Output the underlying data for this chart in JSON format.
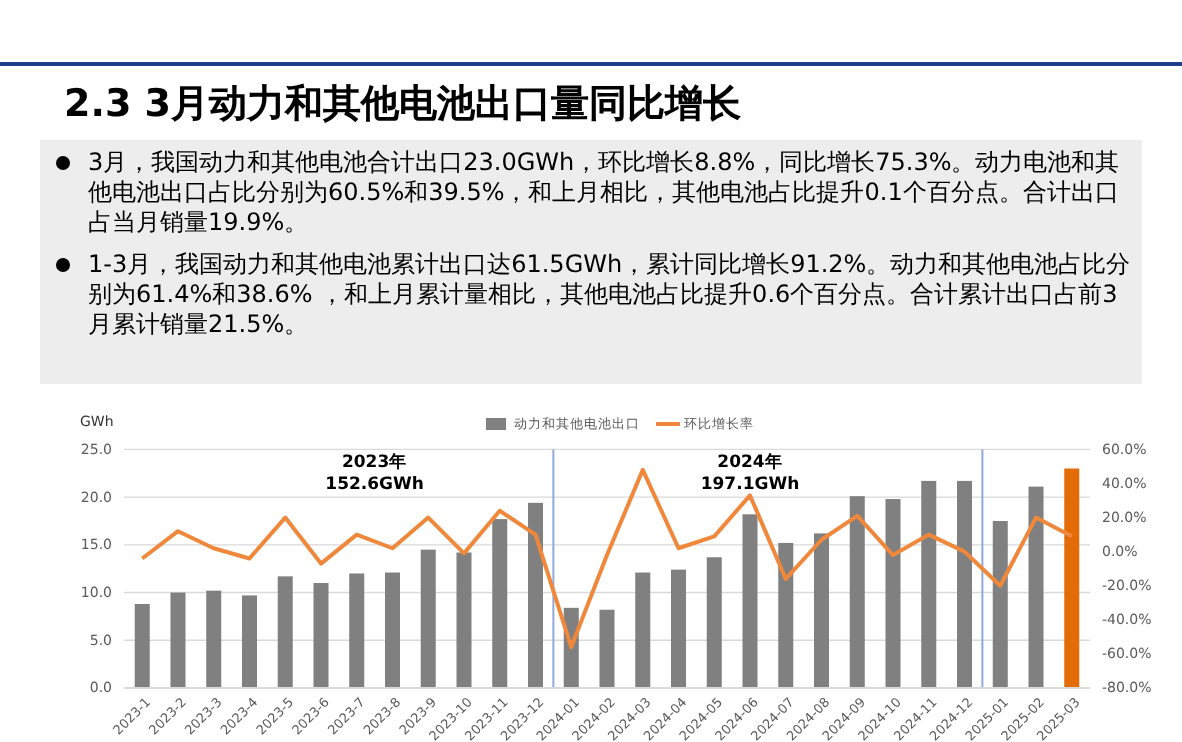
{
  "chart_data": {
    "type": "bar",
    "title": "2.3 3月动力和其他电池出口量同比增长",
    "ylabel": "GWh",
    "subtitle": "3月，我国动力和其他电池合计出口23.0GWh，环比增长8.8%，同比增长75.3%。动力电池和其他电池出口占比分别为60.5%和39.5%，和上月相比，其他电池占比提升0.1个百分点。合计出口占当月销量19.9%。\n1-3月，我国动力和其他电池累计出口达61.5GWh，累计同比增长91.2%。动力和其他电池占比分别为61.4%和38.6% ，和上月累计量相比，其他电池占比提升0.6个百分点。合计累计出口占前3月累计销量21.5%。",
    "categories": [
      "2023-1",
      "2023-2",
      "2023-3",
      "2023-4",
      "2023-5",
      "2023-6",
      "2023-7",
      "2023-8",
      "2023-9",
      "2023-10",
      "2023-11",
      "2023-12",
      "2024-01",
      "2024-02",
      "2024-03",
      "2024-04",
      "2024-05",
      "2024-06",
      "2024-07",
      "2024-08",
      "2024-09",
      "2024-10",
      "2024-11",
      "2024-12",
      "2025-01",
      "2025-02",
      "2025-03"
    ],
    "series": [
      {
        "name": "动力和其他电池出口",
        "color": "#808080",
        "colors": [
          "#808080",
          "#808080",
          "#808080",
          "#808080",
          "#808080",
          "#808080",
          "#808080",
          "#808080",
          "#808080",
          "#808080",
          "#808080",
          "#808080",
          "#808080",
          "#808080",
          "#808080",
          "#808080",
          "#808080",
          "#808080",
          "#808080",
          "#808080",
          "#808080",
          "#808080",
          "#808080",
          "#808080",
          "#808080",
          "#808080",
          "#e36c09"
        ],
        "values": [
          8.8,
          10.0,
          10.2,
          9.7,
          11.7,
          11.0,
          12.0,
          12.1,
          14.5,
          14.2,
          17.7,
          19.4,
          8.4,
          8.2,
          12.1,
          12.4,
          13.7,
          18.2,
          15.2,
          16.2,
          20.1,
          19.8,
          21.7,
          21.7,
          17.5,
          21.1,
          23.0
        ]
      },
      {
        "name": "环比增长率",
        "type": "line",
        "axis": "y2",
        "color": "#f0883c",
        "values": [
          -4,
          12,
          2,
          -4,
          20,
          -7,
          10,
          2,
          20,
          -1,
          24,
          10,
          -56,
          -2,
          48,
          2,
          9,
          33,
          -16,
          7,
          21,
          -2,
          10,
          0,
          -20,
          20,
          9
        ]
      }
    ],
    "ylim": [
      0,
      25
    ],
    "yticks": [
      {
        "value": 0,
        "label": "0.0"
      },
      {
        "value": 5,
        "label": "5.0"
      },
      {
        "value": 10,
        "label": "10.0"
      },
      {
        "value": 15,
        "label": "15.0"
      },
      {
        "value": 20,
        "label": "20.0"
      },
      {
        "value": 25,
        "label": "25.0"
      }
    ],
    "y2lim": [
      -80,
      60
    ],
    "y2ticks": [
      {
        "value": -80,
        "label": "-80.0%"
      },
      {
        "value": -60,
        "label": "-60.0%"
      },
      {
        "value": -40,
        "label": "-40.0%"
      },
      {
        "value": -20,
        "label": "-20.0%"
      },
      {
        "value": 0,
        "label": "0.0%"
      },
      {
        "value": 20,
        "label": "20.0%"
      },
      {
        "value": 40,
        "label": "40.0%"
      },
      {
        "value": 60,
        "label": "60.0%"
      }
    ],
    "ref_lines": [
      {
        "axis": "x",
        "value": "2024-01",
        "color": "#8eaadb"
      },
      {
        "axis": "x",
        "value": "2025-01",
        "color": "#8eaadb"
      }
    ],
    "grid": "y",
    "legend": "top",
    "marker": "none",
    "line_style": "solid",
    "annotations": [
      "2023年\n152.6GWh",
      "2024年\n197.1GWh"
    ]
  }
}
